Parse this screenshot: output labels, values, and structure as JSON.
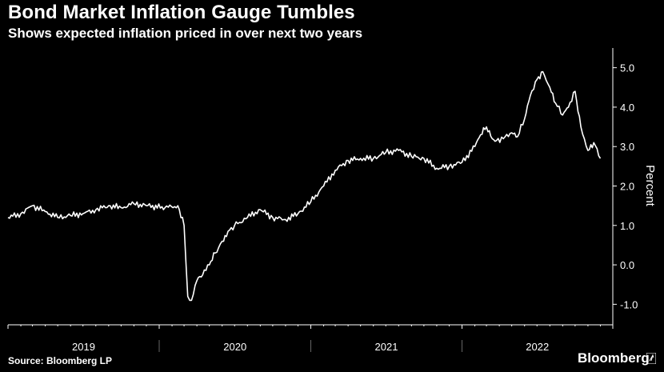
{
  "header": {
    "title": "Bond Market Inflation Gauge Tumbles",
    "subtitle": "Shows expected inflation priced in over next two years"
  },
  "footer": {
    "source": "Source: Bloomberg LP",
    "brand": "Bloomberg"
  },
  "colors": {
    "background": "#000000",
    "line": "#ffffff",
    "axis": "#ffffff"
  },
  "chart_data": {
    "type": "line",
    "title": "Bond Market Inflation Gauge Tumbles",
    "subtitle": "Shows expected inflation priced in over next two years",
    "ylabel": "Percent",
    "xlabel": "",
    "ylim": [
      -1.5,
      5.5
    ],
    "xlim": [
      "2019-01-01",
      "2022-12-31"
    ],
    "y_axis_position": "right",
    "grid": false,
    "yticks": [
      5.0,
      4.0,
      3.0,
      2.0,
      1.0,
      0.0,
      -1.0
    ],
    "ytick_labels": [
      "5.0",
      "4.0",
      "3.0",
      "2.0",
      "1.0",
      "0.0",
      "-1.0"
    ],
    "xtick_labels": [
      "2019",
      "2020",
      "2021",
      "2022"
    ],
    "series": [
      {
        "x": [
          "2019-01-01",
          "2019-02-01",
          "2019-03-01",
          "2019-04-01",
          "2019-05-01",
          "2019-06-01",
          "2019-07-01",
          "2019-08-01",
          "2019-09-01",
          "2019-10-01",
          "2019-11-01",
          "2019-12-01",
          "2020-01-15",
          "2020-02-15",
          "2020-03-01",
          "2020-03-10",
          "2020-03-19",
          "2020-04-01",
          "2020-04-15",
          "2020-05-01",
          "2020-05-15",
          "2020-06-01",
          "2020-06-15",
          "2020-07-01",
          "2020-08-01",
          "2020-09-01",
          "2020-10-01",
          "2020-11-01",
          "2020-12-01",
          "2021-01-01",
          "2021-02-01",
          "2021-03-01",
          "2021-04-01",
          "2021-05-01",
          "2021-06-01",
          "2021-07-01",
          "2021-08-01",
          "2021-09-01",
          "2021-10-01",
          "2021-11-01",
          "2021-12-01",
          "2022-01-01",
          "2022-02-01",
          "2022-02-15",
          "2022-03-01",
          "2022-03-15",
          "2022-03-25",
          "2022-04-15",
          "2022-05-01",
          "2022-05-15",
          "2022-06-01",
          "2022-06-15",
          "2022-07-01",
          "2022-07-15",
          "2022-08-01",
          "2022-08-15",
          "2022-09-01",
          "2022-09-15",
          "2022-10-01",
          "2022-10-15",
          "2022-11-01",
          "2022-11-15",
          "2022-12-01"
        ],
        "values": [
          1.2,
          1.3,
          1.5,
          1.35,
          1.2,
          1.25,
          1.3,
          1.4,
          1.5,
          1.45,
          1.55,
          1.5,
          1.45,
          1.5,
          1.0,
          -0.8,
          -0.9,
          -0.4,
          -0.25,
          0.0,
          0.3,
          0.6,
          0.85,
          1.0,
          1.2,
          1.4,
          1.2,
          1.15,
          1.3,
          1.6,
          2.0,
          2.4,
          2.65,
          2.7,
          2.7,
          2.85,
          2.9,
          2.75,
          2.7,
          2.45,
          2.5,
          2.6,
          3.0,
          3.3,
          3.5,
          3.2,
          3.15,
          3.25,
          3.35,
          3.25,
          3.7,
          4.3,
          4.7,
          4.9,
          4.5,
          4.1,
          3.8,
          4.0,
          4.4,
          3.5,
          2.9,
          3.1,
          2.7
        ]
      }
    ]
  }
}
